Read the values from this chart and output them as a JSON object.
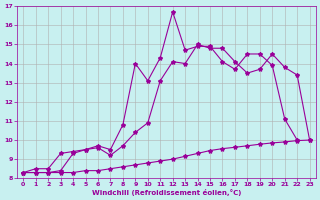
{
  "xlabel": "Windchill (Refroidissement éolien,°C)",
  "xlim": [
    -0.5,
    23.5
  ],
  "ylim": [
    8,
    17
  ],
  "yticks": [
    8,
    9,
    10,
    11,
    12,
    13,
    14,
    15,
    16,
    17
  ],
  "xticks": [
    0,
    1,
    2,
    3,
    4,
    5,
    6,
    7,
    8,
    9,
    10,
    11,
    12,
    13,
    14,
    15,
    16,
    17,
    18,
    19,
    20,
    21,
    22,
    23
  ],
  "bg_color": "#c8f0f0",
  "line_color": "#990099",
  "grid_color": "#b0b0b0",
  "line1_x": [
    0,
    1,
    2,
    3,
    4,
    5,
    6,
    7,
    8,
    9,
    10,
    11,
    12,
    13,
    14,
    15,
    16,
    17,
    18,
    19,
    20,
    21,
    22,
    23
  ],
  "line1_y": [
    8.3,
    8.3,
    8.3,
    8.3,
    8.3,
    8.4,
    8.4,
    8.5,
    8.6,
    8.7,
    8.8,
    8.9,
    9.0,
    9.15,
    9.3,
    9.45,
    9.55,
    9.62,
    9.7,
    9.78,
    9.85,
    9.9,
    9.97,
    10.0
  ],
  "line2_x": [
    0,
    1,
    2,
    3,
    4,
    5,
    6,
    7,
    8,
    9,
    10,
    11,
    12,
    13,
    14,
    15,
    16,
    17,
    18,
    19,
    20,
    21,
    22,
    23
  ],
  "line2_y": [
    8.3,
    8.3,
    8.3,
    8.4,
    9.3,
    9.5,
    9.6,
    9.2,
    9.7,
    10.4,
    10.9,
    13.1,
    14.1,
    14.0,
    15.0,
    14.8,
    14.8,
    14.1,
    13.5,
    13.7,
    14.5,
    13.8,
    13.4,
    10.0
  ],
  "line3_x": [
    0,
    1,
    2,
    3,
    4,
    5,
    6,
    7,
    8,
    9,
    10,
    11,
    12,
    13,
    14,
    15,
    16,
    17,
    18,
    19,
    20,
    21,
    22,
    23
  ],
  "line3_y": [
    8.3,
    8.5,
    8.5,
    9.3,
    9.4,
    9.5,
    9.7,
    9.5,
    10.8,
    14.0,
    13.1,
    14.3,
    16.7,
    14.7,
    14.9,
    14.9,
    14.1,
    13.7,
    14.5,
    14.5,
    13.9,
    11.1,
    10.0,
    null
  ],
  "tick_fontsize": 4.5,
  "xlabel_fontsize": 5,
  "tick_labelsize": 4.5
}
